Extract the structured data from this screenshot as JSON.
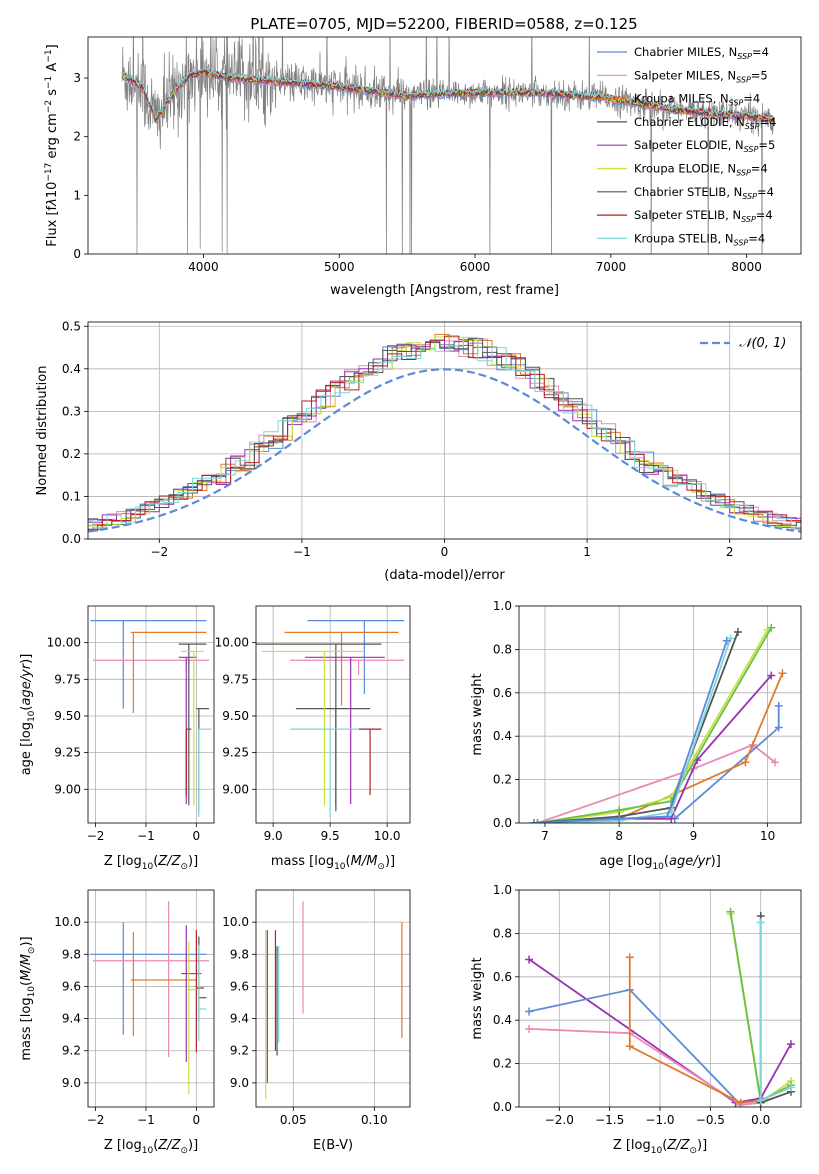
{
  "figure": {
    "title": "PLATE=0705, MJD=52200, FIBERID=0588, z=0.125"
  },
  "series": [
    {
      "name_prefix": "Chabrier MILES, N",
      "name_sub": "SSP",
      "name_suffix": "=4",
      "color": "#5b8bd9"
    },
    {
      "name_prefix": "Salpeter MILES, N",
      "name_sub": "SSP",
      "name_suffix": "=5",
      "color": "#e98ab6"
    },
    {
      "name_prefix": "Kroupa MILES, N",
      "name_sub": "SSP",
      "name_suffix": "=4",
      "color": "#e07a2e"
    },
    {
      "name_prefix": "Chabrier ELODIE, N",
      "name_sub": "SSP",
      "name_suffix": "=4",
      "color": "#555555"
    },
    {
      "name_prefix": "Salpeter ELODIE, N",
      "name_sub": "SSP",
      "name_suffix": "=5",
      "color": "#9b30b2"
    },
    {
      "name_prefix": "Kroupa ELODIE, N",
      "name_sub": "SSP",
      "name_suffix": "=4",
      "color": "#c5e33a"
    },
    {
      "name_prefix": "Chabrier STELIB, N",
      "name_sub": "SSP",
      "name_suffix": "=4",
      "color": "#555555"
    },
    {
      "name_prefix": "Salpeter STELIB, N",
      "name_sub": "SSP",
      "name_suffix": "=4",
      "color": "#b22222"
    },
    {
      "name_prefix": "Kroupa STELIB, N",
      "name_sub": "SSP",
      "name_suffix": "=4",
      "color": "#7fd6d8"
    }
  ],
  "chart_data": [
    {
      "id": "spectrum",
      "type": "line",
      "title": "PLATE=0705, MJD=52200, FIBERID=0588, z=0.125",
      "xlabel": "wavelength [Angstrom, rest frame]",
      "ylabel_html": "Flux [f<tspan font-style='italic'>λ</tspan>10<tspan baseline-shift='super' font-size='9'>−17</tspan> erg cm<tspan baseline-shift='super' font-size='9'>−2</tspan> s<tspan baseline-shift='super' font-size='9'>−1</tspan> A<tspan baseline-shift='super' font-size='9'>−1</tspan>]",
      "xlim": [
        3150,
        8400
      ],
      "ylim": [
        0,
        3.7
      ],
      "xticks": [
        4000,
        5000,
        6000,
        7000,
        8000
      ],
      "yticks": [
        0,
        1,
        2,
        3
      ],
      "data_color": "#808080",
      "data_wavelength_range": [
        3400,
        8200
      ],
      "model_continuum": {
        "x": [
          3400,
          3550,
          3650,
          3800,
          3900,
          4000,
          4200,
          4500,
          5000,
          5500,
          6000,
          6500,
          7000,
          7500,
          8000,
          8200
        ],
        "y": [
          3.05,
          2.85,
          2.3,
          2.8,
          3.05,
          3.1,
          3.0,
          2.95,
          2.85,
          2.7,
          2.75,
          2.75,
          2.65,
          2.45,
          2.35,
          2.3
        ]
      }
    },
    {
      "id": "residuals",
      "type": "histogram",
      "xlabel": "(data-model)/error",
      "ylabel": "Normed distribution",
      "xlim": [
        -2.5,
        2.5
      ],
      "ylim": [
        0,
        0.51
      ],
      "xticks": [
        -2,
        -1,
        0,
        1,
        2
      ],
      "xtick_labels": [
        "−2",
        "−1",
        "0",
        "1",
        "2"
      ],
      "yticks": [
        0.0,
        0.1,
        0.2,
        0.3,
        0.4,
        0.5
      ],
      "ytick_labels": [
        "0.0",
        "0.1",
        "0.2",
        "0.3",
        "0.4",
        "0.5"
      ],
      "bin_width": 0.1,
      "reference_curve": {
        "name_prefix": "𝒩(0, 1)",
        "mean": 0,
        "sigma": 1,
        "color": "#5b8bd9"
      }
    },
    {
      "id": "age-vs-z",
      "type": "errorbar",
      "xlabel_prefix": "Z [log",
      "xlabel_sub": "10",
      "xlabel_frac": "(Z/Z",
      "xlabel_sun": "⊙",
      "xlabel_end": ")]",
      "ylabel_prefix": "age  [log",
      "ylabel_sub": "10",
      "ylabel_end": "(age/yr)]",
      "xlim": [
        -2.15,
        0.35
      ],
      "ylim": [
        8.77,
        10.25
      ],
      "xticks": [
        -2,
        -1,
        0
      ],
      "yticks": [
        9.0,
        9.25,
        9.5,
        9.75,
        10.0
      ],
      "xtick_labels": [
        "−2",
        "−1",
        "0"
      ],
      "ytick_labels": [
        "9.00",
        "9.25",
        "9.50",
        "9.75",
        "10.00"
      ],
      "points": [
        {
          "x": -0.95,
          "xerr": [
            1.15,
            1.15
          ],
          "y": 10.15,
          "yerr": [
            0.6,
            0.0
          ],
          "color": "#5b8bd9",
          "vx": -1.45
        },
        {
          "x": -0.55,
          "xerr": [
            1.5,
            0.8
          ],
          "y": 9.88,
          "yerr": [
            0.0,
            0.0
          ],
          "color": "#e98ab6",
          "vx": -0.55
        },
        {
          "x": -0.65,
          "xerr": [
            0.65,
            0.85
          ],
          "y": 10.07,
          "yerr": [
            0.55,
            0.0
          ],
          "color": "#e07a2e",
          "vx": -1.25
        },
        {
          "x": -0.15,
          "xerr": [
            0.2,
            0.35
          ],
          "y": 9.99,
          "yerr": [
            1.1,
            0.0
          ],
          "color": "#555555",
          "vx": -0.15
        },
        {
          "x": 0.0,
          "xerr": [
            0.0,
            0.25
          ],
          "y": 9.55,
          "yerr": [
            0.7,
            0.0
          ],
          "color": "#555555",
          "vx": 0.05
        },
        {
          "x": -0.2,
          "xerr": [
            0.15,
            0.2
          ],
          "y": 9.9,
          "yerr": [
            1.0,
            0.0
          ],
          "color": "#9b30b2",
          "vx": -0.2
        },
        {
          "x": -0.05,
          "xerr": [
            0.25,
            0.2
          ],
          "y": 9.94,
          "yerr": [
            1.05,
            0.0
          ],
          "color": "#c5e33a",
          "vx": -0.05
        },
        {
          "x": -0.1,
          "xerr": [
            0.1,
            0.0
          ],
          "y": 9.41,
          "yerr": [
            0.45,
            0.0
          ],
          "color": "#b22222",
          "vx": -0.2
        },
        {
          "x": 0.05,
          "xerr": [
            0.0,
            0.25
          ],
          "y": 9.41,
          "yerr": [
            0.6,
            0.0
          ],
          "color": "#7fd6d8",
          "vx": 0.05
        }
      ]
    },
    {
      "id": "age-vs-mass",
      "type": "errorbar",
      "xlabel_prefix": "mass [log",
      "xlabel_sub": "10",
      "xlabel_frac": "(M/M",
      "xlabel_sun": "⊙",
      "xlabel_end": ")]",
      "xlim": [
        8.85,
        10.2
      ],
      "ylim": [
        8.77,
        10.25
      ],
      "xticks": [
        9.0,
        9.5,
        10.0
      ],
      "yticks": [
        9.0,
        9.25,
        9.5,
        9.75,
        10.0
      ],
      "xtick_labels": [
        "9.0",
        "9.5",
        "10.0"
      ],
      "ytick_labels": [
        "9.00",
        "9.25",
        "9.50",
        "9.75",
        "10.00"
      ],
      "points": [
        {
          "x": 9.8,
          "xerr": [
            0.5,
            0.35
          ],
          "y": 10.15,
          "yerr": [
            0.5,
            0.0
          ],
          "color": "#5b8bd9",
          "vx": 9.8
        },
        {
          "x": 9.75,
          "xerr": [
            0.6,
            0.4
          ],
          "y": 9.88,
          "yerr": [
            0.1,
            0.0
          ],
          "color": "#e98ab6",
          "vx": 9.75
        },
        {
          "x": 9.6,
          "xerr": [
            0.5,
            0.5
          ],
          "y": 10.07,
          "yerr": [
            0.5,
            0.0
          ],
          "color": "#e07a2e",
          "vx": 9.6
        },
        {
          "x": 9.55,
          "xerr": [
            0.75,
            0.4
          ],
          "y": 9.99,
          "yerr": [
            1.1,
            0.0
          ],
          "color": "#555555",
          "vx": 9.55
        },
        {
          "x": 9.55,
          "xerr": [
            0.35,
            0.3
          ],
          "y": 9.55,
          "yerr": [
            0.7,
            0.0
          ],
          "color": "#555555",
          "vx": 9.55
        },
        {
          "x": 9.68,
          "xerr": [
            0.4,
            0.3
          ],
          "y": 9.9,
          "yerr": [
            1.0,
            0.0
          ],
          "color": "#9b30b2",
          "vx": 9.68
        },
        {
          "x": 9.45,
          "xerr": [
            0.55,
            0.35
          ],
          "y": 9.94,
          "yerr": [
            1.05,
            0.0
          ],
          "color": "#c5e33a",
          "vx": 9.45
        },
        {
          "x": 9.75,
          "xerr": [
            0.0,
            0.2
          ],
          "y": 9.41,
          "yerr": [
            0.45,
            0.0
          ],
          "color": "#b22222",
          "vx": 9.85
        },
        {
          "x": 9.5,
          "xerr": [
            0.35,
            0.25
          ],
          "y": 9.41,
          "yerr": [
            0.6,
            0.0
          ],
          "color": "#7fd6d8",
          "vx": 9.5
        }
      ]
    },
    {
      "id": "mass-weight-vs-age",
      "type": "line",
      "xlabel_prefix": "age  [log",
      "xlabel_sub": "10",
      "xlabel_end": "(age/yr)]",
      "ylabel": "mass weight",
      "xlim": [
        6.65,
        10.45
      ],
      "ylim": [
        0,
        1.0
      ],
      "xticks": [
        7,
        8,
        9,
        10
      ],
      "yticks": [
        0.0,
        0.2,
        0.4,
        0.6,
        0.8,
        1.0
      ],
      "xtick_labels": [
        "7",
        "8",
        "9",
        "10"
      ],
      "ytick_labels": [
        "0.0",
        "0.2",
        "0.4",
        "0.6",
        "0.8",
        "1.0"
      ],
      "series": [
        {
          "color": "#e98ab6",
          "x": [
            6.9,
            9.0,
            9.8,
            10.1
          ],
          "y": [
            0.0,
            0.25,
            0.36,
            0.28
          ]
        },
        {
          "color": "#5b8bd9",
          "x": [
            6.9,
            8.0,
            8.75,
            10.15,
            10.15
          ],
          "y": [
            0.0,
            0.02,
            0.02,
            0.44,
            0.54
          ]
        },
        {
          "color": "#e07a2e",
          "x": [
            6.9,
            8.0,
            9.7,
            10.2
          ],
          "y": [
            0.0,
            0.02,
            0.28,
            0.69
          ]
        },
        {
          "color": "#9b30b2",
          "x": [
            6.9,
            8.0,
            8.7,
            9.05,
            10.05
          ],
          "y": [
            0.0,
            0.02,
            0.02,
            0.29,
            0.68
          ]
        },
        {
          "color": "#c5e33a",
          "x": [
            6.9,
            8.0,
            8.7,
            10.0
          ],
          "y": [
            0.0,
            0.05,
            0.12,
            0.89
          ]
        },
        {
          "color": "#6abf4b",
          "x": [
            6.9,
            8.0,
            8.7,
            10.05
          ],
          "y": [
            0.0,
            0.06,
            0.1,
            0.9
          ]
        },
        {
          "color": "#555555",
          "x": [
            6.85,
            8.0,
            8.7,
            9.6
          ],
          "y": [
            0.0,
            0.03,
            0.07,
            0.88
          ]
        },
        {
          "color": "#7fd6d8",
          "x": [
            6.85,
            8.0,
            8.7,
            9.5
          ],
          "y": [
            0.0,
            0.01,
            0.05,
            0.85
          ]
        },
        {
          "color": "#5b8bd9",
          "x": [
            6.85,
            8.0,
            8.65,
            9.45
          ],
          "y": [
            0.0,
            0.02,
            0.03,
            0.84
          ]
        }
      ]
    },
    {
      "id": "mass-vs-z",
      "type": "errorbar",
      "xlabel_prefix": "Z [log",
      "xlabel_sub": "10",
      "xlabel_frac": "(Z/Z",
      "xlabel_sun": "⊙",
      "xlabel_end": ")]",
      "ylabel_prefix": "mass [log",
      "ylabel_sub": "10",
      "ylabel_frac": "(M/M",
      "ylabel_sun": "⊙",
      "ylabel_end": ")]",
      "xlim": [
        -2.15,
        0.35
      ],
      "ylim": [
        8.85,
        10.2
      ],
      "xticks": [
        -2,
        -1,
        0
      ],
      "yticks": [
        9.0,
        9.2,
        9.4,
        9.6,
        9.8,
        10.0
      ],
      "xtick_labels": [
        "−2",
        "−1",
        "0"
      ],
      "ytick_labels": [
        "9.0",
        "9.2",
        "9.4",
        "9.6",
        "9.8",
        "10.0"
      ],
      "points": [
        {
          "x": -0.95,
          "xerr": [
            1.15,
            1.15
          ],
          "y": 9.8,
          "yerr": [
            0.5,
            0.2
          ],
          "color": "#5b8bd9",
          "vx": -1.45
        },
        {
          "x": -0.55,
          "xerr": [
            1.5,
            0.8
          ],
          "y": 9.76,
          "yerr": [
            0.6,
            0.37
          ],
          "color": "#e98ab6",
          "vx": -0.55
        },
        {
          "x": -0.75,
          "xerr": [
            0.55,
            0.75
          ],
          "y": 9.64,
          "yerr": [
            0.35,
            0.3
          ],
          "color": "#e07a2e",
          "vx": -1.25
        },
        {
          "x": 0.05,
          "xerr": [
            0.0,
            0.15
          ],
          "y": 9.53,
          "yerr": [
            0.15,
            0.38
          ],
          "color": "#555555",
          "vx": 0.05
        },
        {
          "x": 0.0,
          "xerr": [
            0.0,
            0.15
          ],
          "y": 9.59,
          "yerr": [
            0.4,
            0.36
          ],
          "color": "#b22222",
          "vx": 0.0
        },
        {
          "x": -0.1,
          "xerr": [
            0.2,
            0.2
          ],
          "y": 9.68,
          "yerr": [
            0.55,
            0.3
          ],
          "color": "#9b30b2",
          "vx": -0.2
        },
        {
          "x": -0.1,
          "xerr": [
            0.1,
            0.1
          ],
          "y": 9.58,
          "yerr": [
            0.65,
            0.3
          ],
          "color": "#c5e33a",
          "vx": -0.15
        },
        {
          "x": 0.05,
          "xerr": [
            0.0,
            0.15
          ],
          "y": 9.46,
          "yerr": [
            0.2,
            0.4
          ],
          "color": "#7fd6d8",
          "vx": 0.05
        }
      ]
    },
    {
      "id": "mass-vs-ebv",
      "type": "errorbar",
      "xlabel": "E(B-V)",
      "xlim": [
        0.027,
        0.122
      ],
      "ylim": [
        8.85,
        10.2
      ],
      "xticks": [
        0.05,
        0.1
      ],
      "yticks": [
        9.0,
        9.2,
        9.4,
        9.6,
        9.8,
        10.0
      ],
      "xtick_labels": [
        "0.05",
        "0.10"
      ],
      "ytick_labels": [
        "9.0",
        "9.2",
        "9.4",
        "9.6",
        "9.8",
        "10.0"
      ],
      "vlines": [
        {
          "x": 0.033,
          "y0": 8.9,
          "y1": 9.95,
          "color": "#c5e33a"
        },
        {
          "x": 0.034,
          "y0": 9.0,
          "y1": 9.95,
          "color": "#9b30b2"
        },
        {
          "x": 0.039,
          "y0": 9.2,
          "y1": 9.95,
          "color": "#b22222"
        },
        {
          "x": 0.04,
          "y0": 9.17,
          "y1": 9.85,
          "color": "#555555"
        },
        {
          "x": 0.041,
          "y0": 9.25,
          "y1": 9.85,
          "color": "#7fd6d8"
        },
        {
          "x": 0.056,
          "y0": 9.43,
          "y1": 10.13,
          "color": "#e98ab6"
        },
        {
          "x": 0.117,
          "y0": 9.28,
          "y1": 10.0,
          "color": "#e07a2e"
        }
      ]
    },
    {
      "id": "mass-weight-vs-z",
      "type": "line",
      "xlabel_prefix": "Z [log",
      "xlabel_sub": "10",
      "xlabel_frac": "(Z/Z",
      "xlabel_sun": "⊙",
      "xlabel_end": ")]",
      "ylabel": "mass weight",
      "xlim": [
        -2.4,
        0.4
      ],
      "ylim": [
        0,
        1.0
      ],
      "xticks": [
        -2.0,
        -1.5,
        -1.0,
        -0.5,
        0.0
      ],
      "yticks": [
        0.0,
        0.2,
        0.4,
        0.6,
        0.8,
        1.0
      ],
      "xtick_labels": [
        "−2.0",
        "−1.5",
        "−1.0",
        "−0.5",
        "0.0"
      ],
      "ytick_labels": [
        "0.0",
        "0.2",
        "0.4",
        "0.6",
        "0.8",
        "1.0"
      ],
      "series": [
        {
          "color": "#9b30b2",
          "x": [
            -2.3,
            -0.25,
            0.0,
            0.3
          ],
          "y": [
            0.68,
            0.02,
            0.04,
            0.29
          ]
        },
        {
          "color": "#5b8bd9",
          "x": [
            -2.3,
            -1.3,
            -0.2,
            0.0
          ],
          "y": [
            0.44,
            0.54,
            0.01,
            0.02
          ]
        },
        {
          "color": "#e98ab6",
          "x": [
            -2.3,
            -1.3,
            -0.2,
            0.0
          ],
          "y": [
            0.36,
            0.34,
            0.01,
            0.02
          ]
        },
        {
          "color": "#e07a2e",
          "x": [
            -1.3,
            -1.3,
            -0.2,
            0.0
          ],
          "y": [
            0.69,
            0.28,
            0.02,
            0.03
          ]
        },
        {
          "color": "#c5e33a",
          "x": [
            -0.3,
            0.0,
            0.3
          ],
          "y": [
            0.89,
            0.02,
            0.12
          ]
        },
        {
          "color": "#6abf4b",
          "x": [
            -0.3,
            0.0,
            0.3
          ],
          "y": [
            0.9,
            0.03,
            0.1
          ]
        },
        {
          "color": "#555555",
          "x": [
            0.0,
            0.0,
            0.3
          ],
          "y": [
            0.88,
            0.02,
            0.07
          ]
        },
        {
          "color": "#7fd6d8",
          "x": [
            0.0,
            0.0,
            0.3
          ],
          "y": [
            0.85,
            0.03,
            0.09
          ]
        }
      ]
    }
  ]
}
